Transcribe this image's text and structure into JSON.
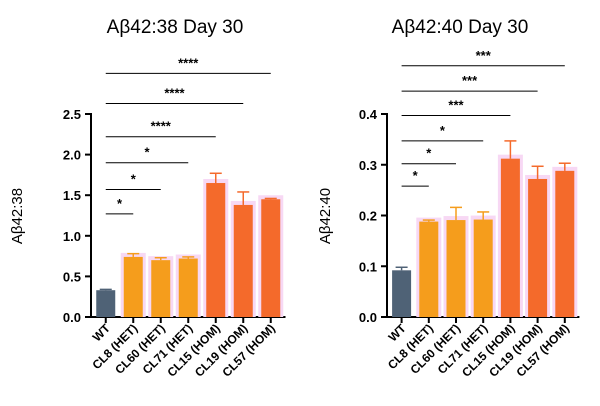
{
  "colors": {
    "wt": "#4f6276",
    "het": "#f59d1c",
    "hom": "#f46a2b",
    "highlight": "#f7d8f4",
    "axis": "#000000",
    "bracket": "#000000"
  },
  "chart_data": [
    {
      "type": "bar",
      "title": "Aβ42:38 Day 30",
      "xlabel": "",
      "ylabel": "Aβ42:38",
      "ylim": [
        0,
        2.5
      ],
      "yticks": [
        "0.0",
        "0.5",
        "1.0",
        "1.5",
        "2.0",
        "2.5"
      ],
      "ytick_values": [
        0,
        0.5,
        1.0,
        1.5,
        2.0,
        2.5
      ],
      "categories": [
        "WT",
        "CL8 (HET)",
        "CL60 (HET)",
        "CL71 (HET)",
        "CL15 (HOM)",
        "CL19 (HOM)",
        "CL57 (HOM)"
      ],
      "groups": [
        "wt",
        "het",
        "het",
        "het",
        "hom",
        "hom",
        "hom"
      ],
      "values": [
        0.33,
        0.74,
        0.7,
        0.72,
        1.65,
        1.38,
        1.45
      ],
      "errors": [
        0.01,
        0.04,
        0.03,
        0.02,
        0.12,
        0.16,
        0.01
      ],
      "comparisons": [
        {
          "from": "WT",
          "to": "CL8 (HET)",
          "label": "*",
          "y": 1.27
        },
        {
          "from": "WT",
          "to": "CL60 (HET)",
          "label": "*",
          "y": 1.57
        },
        {
          "from": "WT",
          "to": "CL71 (HET)",
          "label": "*",
          "y": 1.9
        },
        {
          "from": "WT",
          "to": "CL15 (HOM)",
          "label": "****",
          "y": 2.22
        },
        {
          "from": "WT",
          "to": "CL19 (HOM)",
          "label": "****",
          "y": 2.63
        },
        {
          "from": "WT",
          "to": "CL57 (HOM)",
          "label": "****",
          "y": 3.0
        }
      ]
    },
    {
      "type": "bar",
      "title": "Aβ42:40 Day 30",
      "xlabel": "",
      "ylabel": "Aβ42:40",
      "ylim": [
        0,
        0.4
      ],
      "yticks": [
        "0.0",
        "0.1",
        "0.2",
        "0.3",
        "0.4"
      ],
      "ytick_values": [
        0,
        0.1,
        0.2,
        0.3,
        0.4
      ],
      "categories": [
        "WT",
        "CL8 (HET)",
        "CL60 (HET)",
        "CL71 (HET)",
        "CL15 (HOM)",
        "CL19 (HOM)",
        "CL57 (HOM)"
      ],
      "groups": [
        "wt",
        "het",
        "het",
        "het",
        "hom",
        "hom",
        "hom"
      ],
      "values": [
        0.092,
        0.188,
        0.191,
        0.192,
        0.312,
        0.272,
        0.288
      ],
      "errors": [
        0.006,
        0.003,
        0.025,
        0.015,
        0.035,
        0.025,
        0.015
      ],
      "comparisons": [
        {
          "from": "WT",
          "to": "CL8 (HET)",
          "label": "*",
          "y": 0.258
        },
        {
          "from": "WT",
          "to": "CL60 (HET)",
          "label": "*",
          "y": 0.302
        },
        {
          "from": "WT",
          "to": "CL71 (HET)",
          "label": "*",
          "y": 0.347
        },
        {
          "from": "WT",
          "to": "CL15 (HOM)",
          "label": "***",
          "y": 0.397
        },
        {
          "from": "WT",
          "to": "CL19 (HOM)",
          "label": "***",
          "y": 0.445
        },
        {
          "from": "WT",
          "to": "CL57 (HOM)",
          "label": "***",
          "y": 0.495
        }
      ]
    }
  ]
}
